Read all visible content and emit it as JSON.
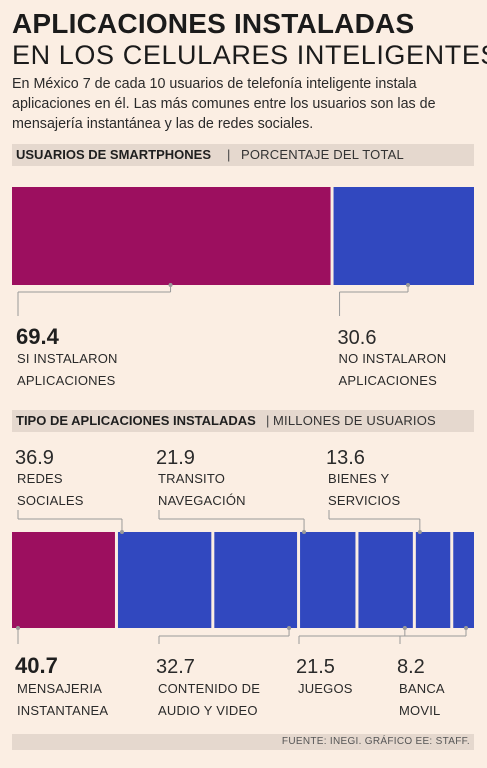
{
  "title_line1": "APLICACIONES INSTALADAS",
  "title_line2": "EN LOS CELULARES INTELIGENTES",
  "intro": "En México 7 de cada 10 usuarios de telefonía inteligente instala aplicaciones en él. Las más comunes entre los usuarios son las de mensajería instantánea y las de redes sociales.",
  "section1": {
    "strong": "USUARIOS DE SMARTPHONES",
    "sep": "|",
    "light": "PORCENTAJE  DEL TOTAL"
  },
  "section2": {
    "strong": "TIPO DE APLICACIONES INSTALADAS",
    "sep": "|",
    "light": "MILLONES DE USUARIOS"
  },
  "footer": "FUENTE: INEGI. GRÁFICO EE: STAFF.",
  "colors": {
    "magenta": "#9c0f5f",
    "blue": "#3148bf",
    "background": "#fbeee3",
    "bar_strip": "#e5d8ce",
    "leader": "#9a9a9a"
  },
  "chart_data": [
    {
      "type": "bar",
      "orientation": "stacked-horizontal",
      "unit": "percent",
      "segments": [
        {
          "value": 69.4,
          "value_label": "69.4",
          "label_lines": [
            "SI INSTALARON",
            "APLICACIONES"
          ],
          "color": "#9c0f5f"
        },
        {
          "value": 30.6,
          "value_label": "30.6",
          "label_lines": [
            "NO INSTALARON",
            "APLICACIONES"
          ],
          "color": "#3148bf"
        }
      ]
    },
    {
      "type": "bar",
      "orientation": "stacked-horizontal",
      "unit": "millones de usuarios",
      "segments": [
        {
          "value": 40.7,
          "value_label": "40.7",
          "label_lines": [
            "MENSAJERIA",
            "INSTANTANEA"
          ],
          "color": "#9c0f5f",
          "label_position": "below"
        },
        {
          "value": 36.9,
          "value_label": "36.9",
          "label_lines": [
            "REDES",
            "SOCIALES"
          ],
          "color": "#3148bf",
          "label_position": "above"
        },
        {
          "value": 32.7,
          "value_label": "32.7",
          "label_lines": [
            "CONTENIDO DE",
            "AUDIO Y VIDEO"
          ],
          "color": "#3148bf",
          "label_position": "below"
        },
        {
          "value": 21.9,
          "value_label": "21.9",
          "label_lines": [
            "TRANSITO",
            "NAVEGACIÓN"
          ],
          "color": "#3148bf",
          "label_position": "above"
        },
        {
          "value": 21.5,
          "value_label": "21.5",
          "label_lines": [
            "JUEGOS"
          ],
          "color": "#3148bf",
          "label_position": "below"
        },
        {
          "value": 13.6,
          "value_label": "13.6",
          "label_lines": [
            "BIENES Y",
            "SERVICIOS"
          ],
          "color": "#3148bf",
          "label_position": "above"
        },
        {
          "value": 8.2,
          "value_label": "8.2",
          "label_lines": [
            "BANCA",
            "MOVIL"
          ],
          "color": "#3148bf",
          "label_position": "below"
        }
      ]
    }
  ]
}
